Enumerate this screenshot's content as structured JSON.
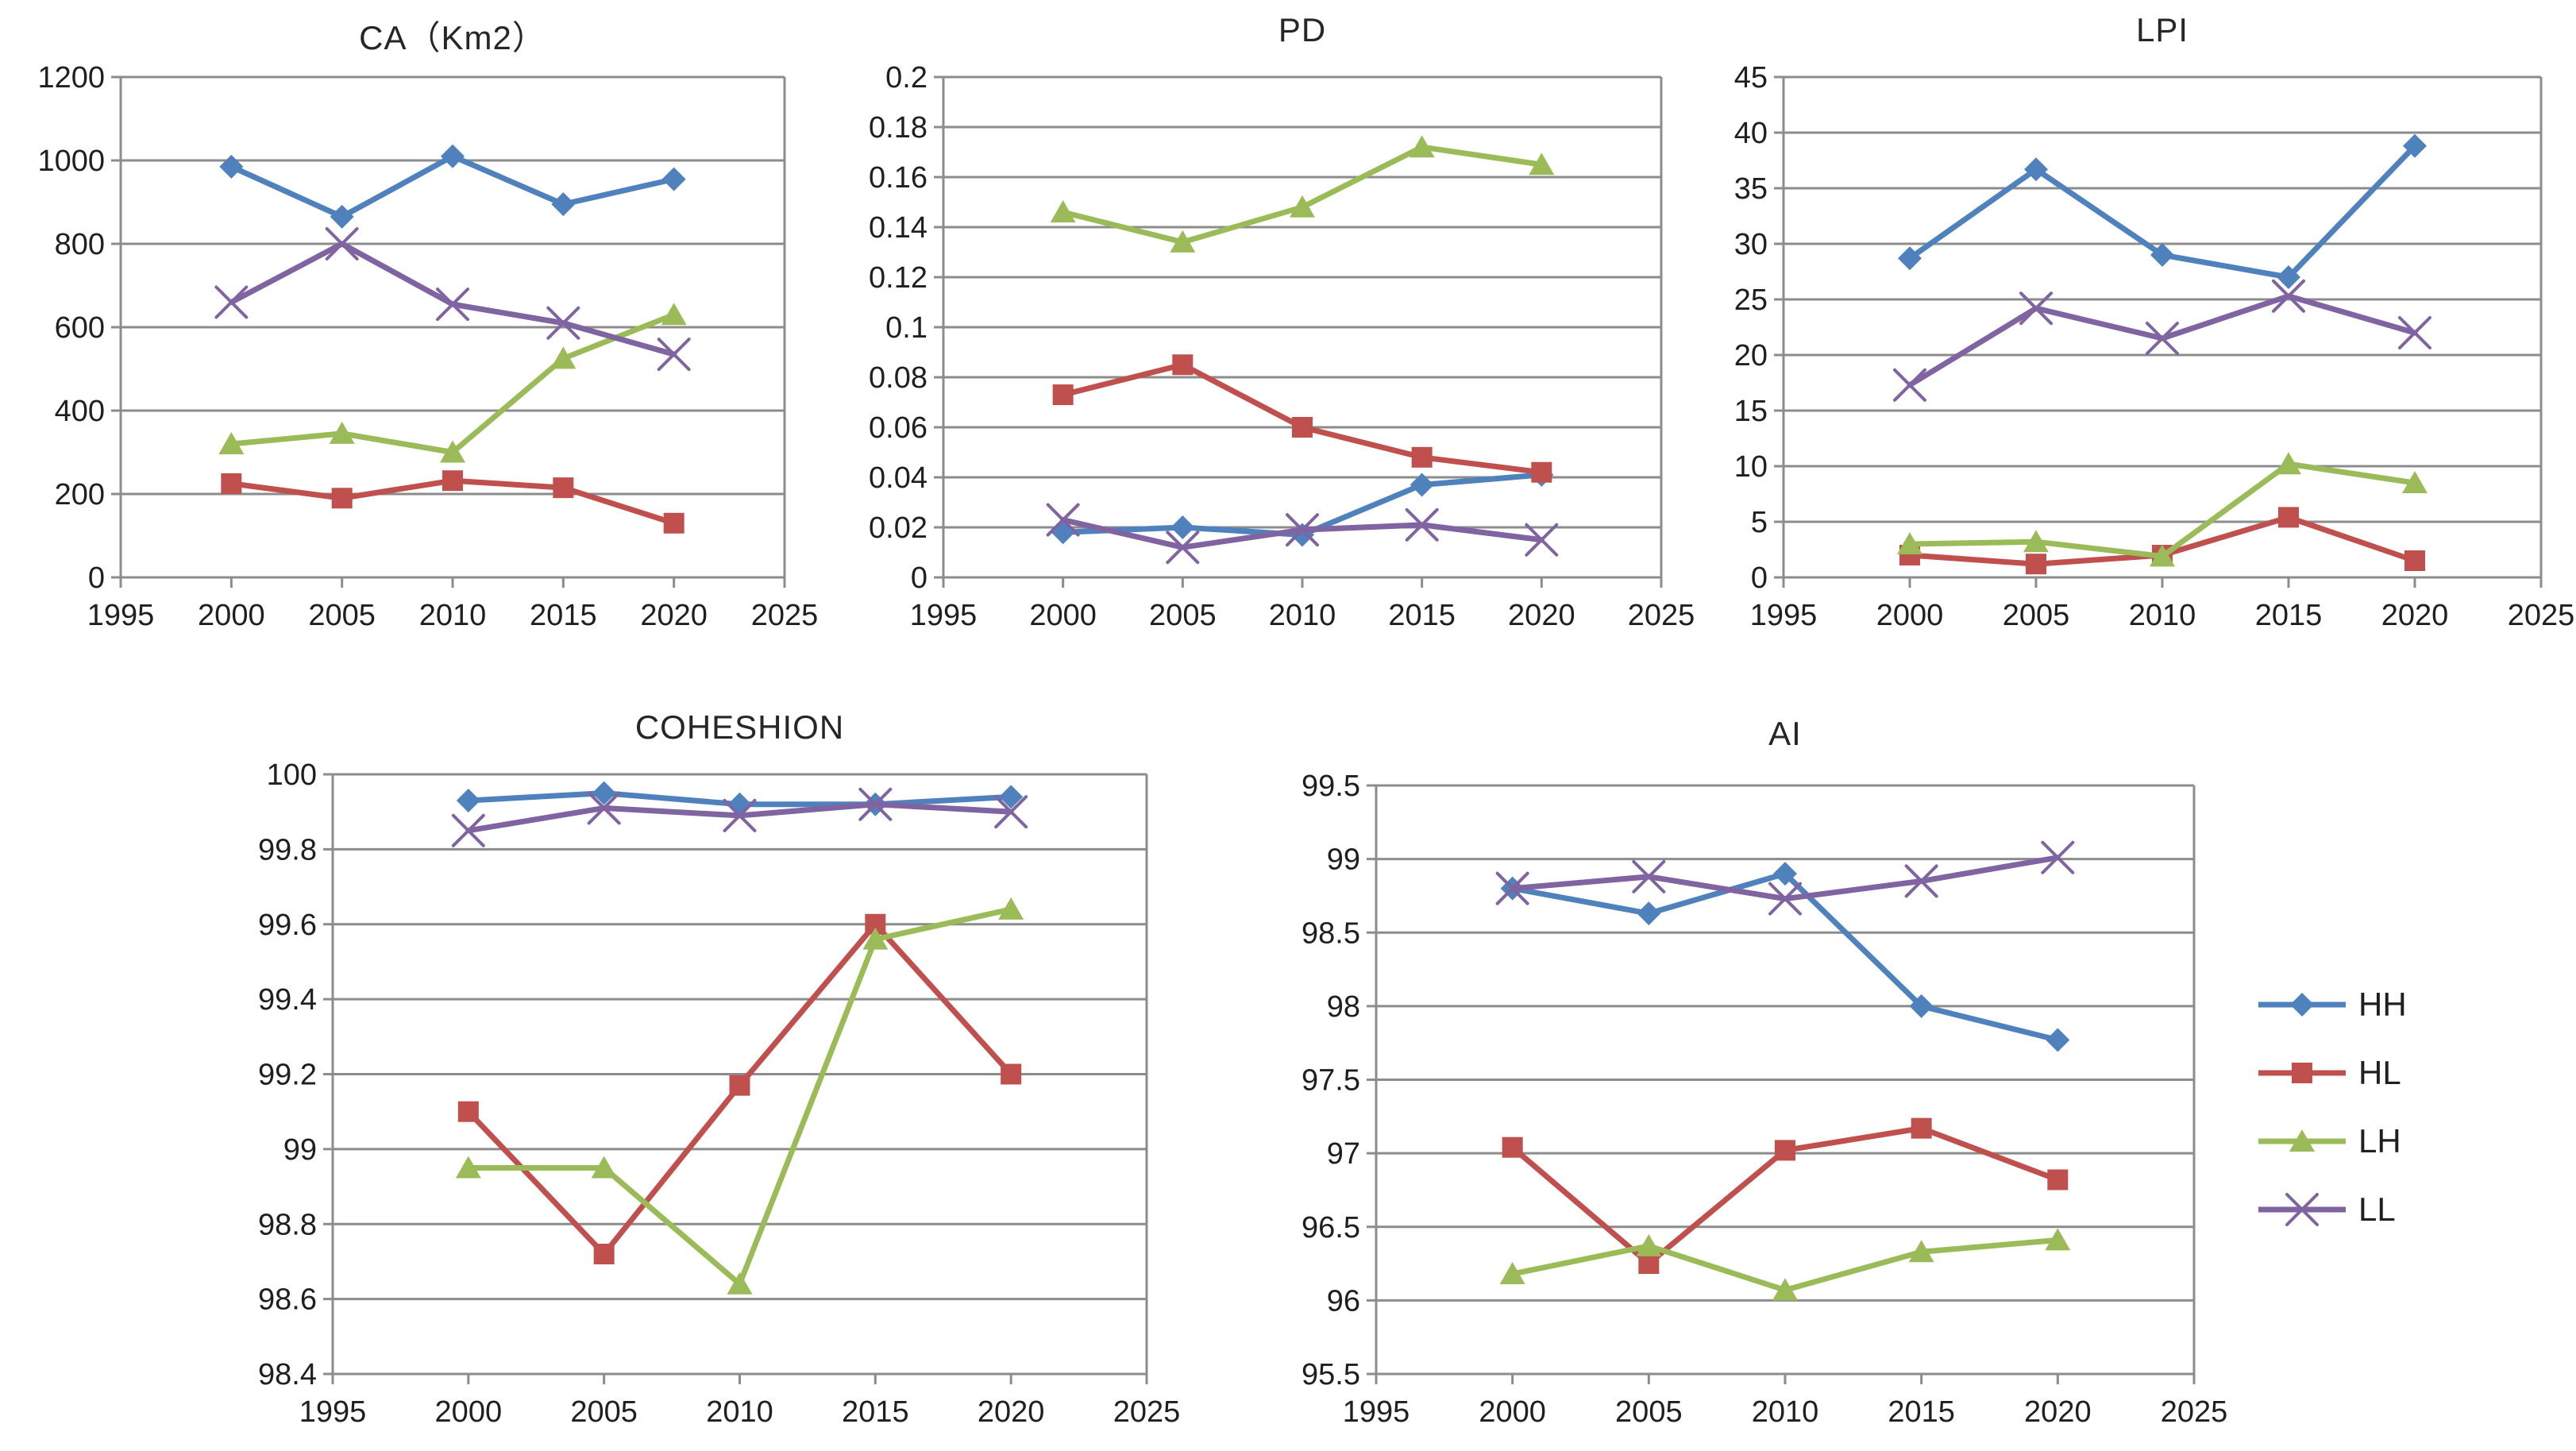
{
  "figure": {
    "background": "#ffffff",
    "text_color": "#1f1f1f",
    "grid_color": "#8c8c8c"
  },
  "legend": {
    "position": "right",
    "items": [
      {
        "label": "HH",
        "color": "#4f81bd",
        "marker": "diamond"
      },
      {
        "label": "HL",
        "color": "#c0504d",
        "marker": "square"
      },
      {
        "label": "LH",
        "color": "#9bbb59",
        "marker": "triangle"
      },
      {
        "label": "LL",
        "color": "#8064a2",
        "marker": "x"
      }
    ]
  },
  "chart_data": [
    {
      "id": "ca",
      "type": "line",
      "title": "CA（Km2）",
      "xlabel": "",
      "ylabel": "",
      "grid": true,
      "x": [
        2000,
        2005,
        2010,
        2015,
        2020
      ],
      "xlim": [
        1995,
        2025
      ],
      "xticks": [
        "1995",
        "2000",
        "2005",
        "2010",
        "2015",
        "2020",
        "2025"
      ],
      "ylim": [
        0,
        1200
      ],
      "yticks": [
        {
          "value": 0,
          "label": "0"
        },
        {
          "value": 200,
          "label": "200"
        },
        {
          "value": 400,
          "label": "400"
        },
        {
          "value": 600,
          "label": "600"
        },
        {
          "value": 800,
          "label": "800"
        },
        {
          "value": 1000,
          "label": "1000"
        },
        {
          "value": 1200,
          "label": "1200"
        }
      ],
      "series": [
        {
          "name": "HH",
          "values": [
            985,
            865,
            1010,
            895,
            955
          ]
        },
        {
          "name": "HL",
          "values": [
            225,
            190,
            232,
            215,
            130
          ]
        },
        {
          "name": "LH",
          "values": [
            320,
            345,
            300,
            525,
            630
          ]
        },
        {
          "name": "LL",
          "values": [
            660,
            800,
            655,
            610,
            535
          ]
        }
      ]
    },
    {
      "id": "pd",
      "type": "line",
      "title": "PD",
      "xlabel": "",
      "ylabel": "",
      "grid": true,
      "x": [
        2000,
        2005,
        2010,
        2015,
        2020
      ],
      "xlim": [
        1995,
        2025
      ],
      "xticks": [
        "1995",
        "2000",
        "2005",
        "2010",
        "2015",
        "2020",
        "2025"
      ],
      "ylim": [
        0,
        0.2
      ],
      "yticks": [
        {
          "value": 0,
          "label": "0"
        },
        {
          "value": 0.02,
          "label": "0.02"
        },
        {
          "value": 0.04,
          "label": "0.04"
        },
        {
          "value": 0.06,
          "label": "0.06"
        },
        {
          "value": 0.08,
          "label": "0.08"
        },
        {
          "value": 0.1,
          "label": "0.1"
        },
        {
          "value": 0.12,
          "label": "0.12"
        },
        {
          "value": 0.14,
          "label": "0.14"
        },
        {
          "value": 0.16,
          "label": "0.16"
        },
        {
          "value": 0.18,
          "label": "0.18"
        },
        {
          "value": 0.2,
          "label": "0.2"
        }
      ],
      "series": [
        {
          "name": "HH",
          "values": [
            0.018,
            0.02,
            0.017,
            0.037,
            0.041
          ]
        },
        {
          "name": "HL",
          "values": [
            0.073,
            0.085,
            0.06,
            0.048,
            0.042
          ]
        },
        {
          "name": "LH",
          "values": [
            0.146,
            0.134,
            0.148,
            0.172,
            0.165
          ]
        },
        {
          "name": "LL",
          "values": [
            0.023,
            0.012,
            0.019,
            0.021,
            0.015
          ]
        }
      ]
    },
    {
      "id": "lpi",
      "type": "line",
      "title": "LPI",
      "xlabel": "",
      "ylabel": "",
      "grid": true,
      "x": [
        2000,
        2005,
        2010,
        2015,
        2020
      ],
      "xlim": [
        1995,
        2025
      ],
      "xticks": [
        "1995",
        "2000",
        "2005",
        "2010",
        "2015",
        "2020",
        "2025"
      ],
      "ylim": [
        0,
        45
      ],
      "yticks": [
        {
          "value": 0,
          "label": "0"
        },
        {
          "value": 5,
          "label": "5"
        },
        {
          "value": 10,
          "label": "10"
        },
        {
          "value": 15,
          "label": "15"
        },
        {
          "value": 20,
          "label": "20"
        },
        {
          "value": 25,
          "label": "25"
        },
        {
          "value": 30,
          "label": "30"
        },
        {
          "value": 35,
          "label": "35"
        },
        {
          "value": 40,
          "label": "40"
        },
        {
          "value": 45,
          "label": "45"
        }
      ],
      "series": [
        {
          "name": "HH",
          "values": [
            28.7,
            36.7,
            29.0,
            27.0,
            38.8
          ]
        },
        {
          "name": "HL",
          "values": [
            2.0,
            1.2,
            2.0,
            5.4,
            1.5
          ]
        },
        {
          "name": "LH",
          "values": [
            3.0,
            3.2,
            1.9,
            10.2,
            8.5
          ]
        },
        {
          "name": "LL",
          "values": [
            17.3,
            24.2,
            21.5,
            25.3,
            22.0
          ]
        }
      ]
    },
    {
      "id": "coheshion",
      "type": "line",
      "title": "COHESHION",
      "xlabel": "",
      "ylabel": "",
      "grid": true,
      "x": [
        2000,
        2005,
        2010,
        2015,
        2020
      ],
      "xlim": [
        1995,
        2025
      ],
      "xticks": [
        "1995",
        "2000",
        "2005",
        "2010",
        "2015",
        "2020",
        "2025"
      ],
      "ylim": [
        98.4,
        100
      ],
      "yticks": [
        {
          "value": 98.4,
          "label": "98.4"
        },
        {
          "value": 98.6,
          "label": "98.6"
        },
        {
          "value": 98.8,
          "label": "98.8"
        },
        {
          "value": 99,
          "label": "99"
        },
        {
          "value": 99.2,
          "label": "99.2"
        },
        {
          "value": 99.4,
          "label": "99.4"
        },
        {
          "value": 99.6,
          "label": "99.6"
        },
        {
          "value": 99.8,
          "label": "99.8"
        },
        {
          "value": 100,
          "label": "100"
        }
      ],
      "series": [
        {
          "name": "HH",
          "values": [
            99.93,
            99.95,
            99.92,
            99.92,
            99.94
          ]
        },
        {
          "name": "HL",
          "values": [
            99.1,
            98.72,
            99.17,
            99.6,
            99.2
          ]
        },
        {
          "name": "LH",
          "values": [
            98.95,
            98.95,
            98.64,
            99.56,
            99.64
          ]
        },
        {
          "name": "LL",
          "values": [
            99.85,
            99.91,
            99.89,
            99.92,
            99.9
          ]
        }
      ]
    },
    {
      "id": "ai",
      "type": "line",
      "title": "AI",
      "xlabel": "",
      "ylabel": "",
      "grid": true,
      "x": [
        2000,
        2005,
        2010,
        2015,
        2020
      ],
      "xlim": [
        1995,
        2025
      ],
      "xticks": [
        "1995",
        "2000",
        "2005",
        "2010",
        "2015",
        "2020",
        "2025"
      ],
      "ylim": [
        95.5,
        99.5
      ],
      "yticks": [
        {
          "value": 95.5,
          "label": "95.5"
        },
        {
          "value": 96,
          "label": "96"
        },
        {
          "value": 96.5,
          "label": "96.5"
        },
        {
          "value": 97,
          "label": "97"
        },
        {
          "value": 97.5,
          "label": "97.5"
        },
        {
          "value": 98,
          "label": "98"
        },
        {
          "value": 98.5,
          "label": "98.5"
        },
        {
          "value": 99,
          "label": "99"
        },
        {
          "value": 99.5,
          "label": "99.5"
        }
      ],
      "series": [
        {
          "name": "HH",
          "values": [
            98.8,
            98.63,
            98.9,
            98.0,
            97.77
          ]
        },
        {
          "name": "HL",
          "values": [
            97.04,
            96.25,
            97.02,
            97.17,
            96.82
          ]
        },
        {
          "name": "LH",
          "values": [
            96.18,
            96.37,
            96.07,
            96.33,
            96.41
          ]
        },
        {
          "name": "LL",
          "values": [
            98.8,
            98.88,
            98.73,
            98.85,
            99.01
          ]
        }
      ]
    }
  ]
}
